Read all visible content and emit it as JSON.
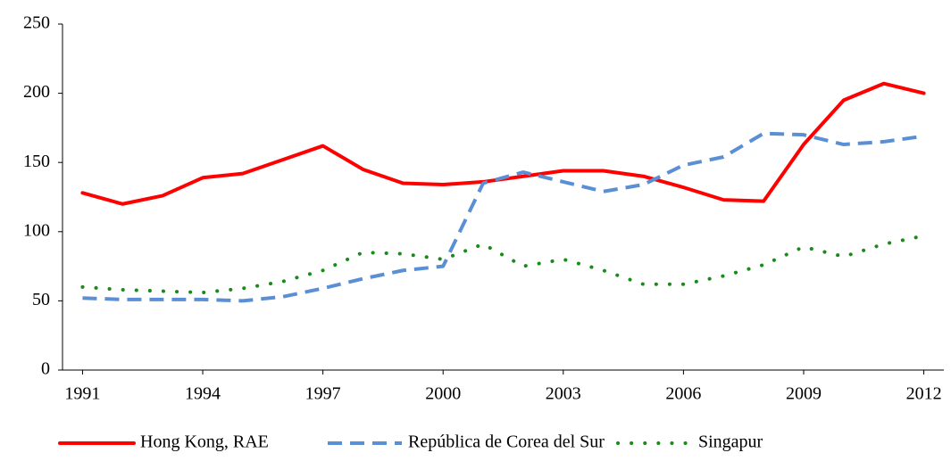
{
  "chart_data": {
    "type": "line",
    "x": [
      1991,
      1992,
      1993,
      1994,
      1995,
      1996,
      1997,
      1998,
      1999,
      2000,
      2001,
      2002,
      2003,
      2004,
      2005,
      2006,
      2007,
      2008,
      2009,
      2010,
      2011,
      2012
    ],
    "series": [
      {
        "name": "Hong Kong, RAE",
        "color": "#ff0000",
        "dash": "solid",
        "values": [
          128,
          120,
          126,
          139,
          142,
          152,
          162,
          145,
          135,
          134,
          136,
          140,
          144,
          144,
          140,
          132,
          123,
          122,
          163,
          195,
          207,
          200
        ]
      },
      {
        "name": "República de Corea del Sur",
        "color": "#5b8fd5",
        "dash": "dashed",
        "values": [
          52,
          51,
          51,
          51,
          50,
          53,
          59,
          66,
          72,
          75,
          135,
          143,
          136,
          129,
          134,
          148,
          154,
          171,
          170,
          163,
          165,
          169
        ]
      },
      {
        "name": "Singapur",
        "color": "#1a8a1a",
        "dash": "dotted",
        "values": [
          60,
          58,
          57,
          56,
          59,
          64,
          72,
          85,
          84,
          80,
          91,
          75,
          80,
          72,
          62,
          62,
          68,
          76,
          89,
          82,
          91,
          97
        ]
      }
    ],
    "xlim": [
      1990.5,
      2012.5
    ],
    "xticks": [
      1991,
      1994,
      1997,
      2000,
      2003,
      2006,
      2009,
      2012
    ],
    "ylim": [
      0,
      250
    ],
    "yticks": [
      0,
      50,
      100,
      150,
      200,
      250
    ],
    "legend": "bottom"
  }
}
